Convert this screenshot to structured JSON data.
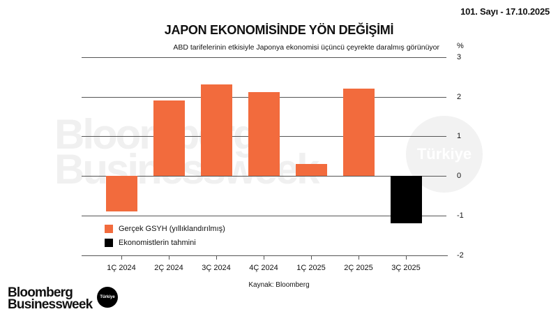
{
  "header": {
    "issue": "101. Sayı - 17.10.2025",
    "title": "JAPON EKONOMİSİNDE YÖN DEĞİŞİMİ",
    "subtitle": "ABD tarifelerinin etkisiyle Japonya ekonomisi üçüncü çeyrekte daralmış görünüyor",
    "unit": "%"
  },
  "watermark": {
    "line1": "Bloomberg",
    "line2": "Businessweek",
    "badge": "Türkiye"
  },
  "legend": {
    "actual": "Gerçek GSYH (yıllıklandırılmış)",
    "forecast": "Ekonomistlerin tahmini"
  },
  "colors": {
    "actual": "#F26B3D",
    "forecast": "#000000"
  },
  "source": "Kaynak: Bloomberg",
  "footer": {
    "logo_line1": "Bloomberg",
    "logo_line2": "Businessweek",
    "logo_badge": "Türkiye"
  },
  "y_ticks": [
    "3",
    "2",
    "1",
    "0",
    "-1",
    "-2"
  ],
  "chart_data": {
    "type": "bar",
    "title": "JAPON EKONOMİSİNDE YÖN DEĞİŞİMİ",
    "subtitle": "ABD tarifelerinin etkisiyle Japonya ekonomisi üçüncü çeyrekte daralmış görünüyor",
    "categories": [
      "1Ç 2024",
      "2Ç 2024",
      "3Ç 2024",
      "4Ç 2024",
      "1Ç 2025",
      "2Ç 2025",
      "3Ç 2025"
    ],
    "series": [
      {
        "name": "Gerçek GSYH (yıllıklandırılmış)",
        "color": "#F26B3D",
        "values": [
          -0.9,
          1.9,
          2.3,
          2.1,
          0.3,
          2.2,
          null
        ]
      },
      {
        "name": "Ekonomistlerin tahmini",
        "color": "#000000",
        "values": [
          null,
          null,
          null,
          null,
          null,
          null,
          -1.2
        ]
      }
    ],
    "xlabel": "",
    "ylabel": "%",
    "ylim": [
      -2,
      3
    ],
    "yticks": [
      -2,
      -1,
      0,
      1,
      2,
      3
    ],
    "grid": true,
    "y_axis_position": "right",
    "legend_position": "bottom-left inside",
    "source": "Kaynak: Bloomberg"
  }
}
